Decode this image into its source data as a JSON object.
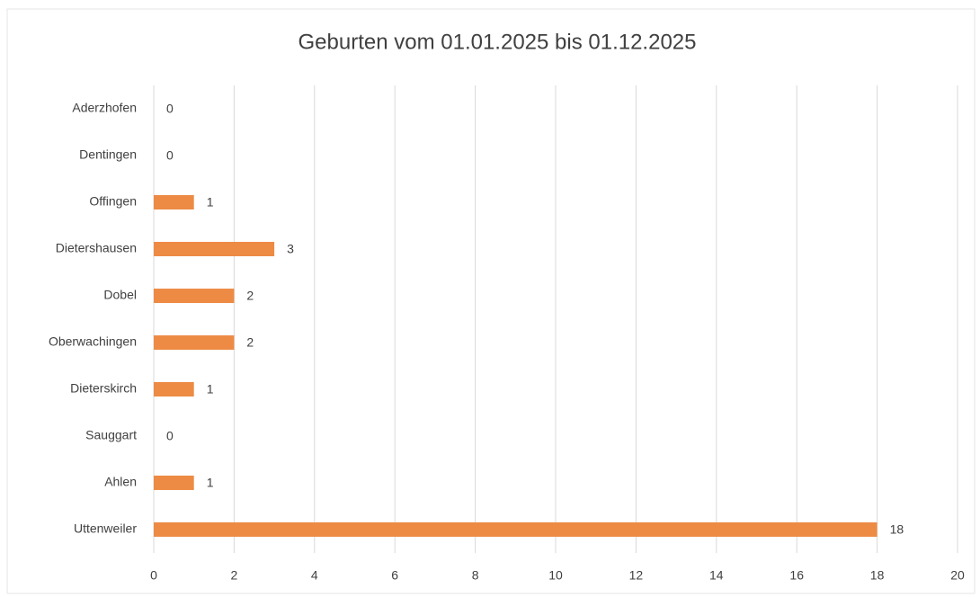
{
  "chart_data": {
    "type": "bar",
    "orientation": "horizontal",
    "title": "Geburten vom 01.01.2025 bis 01.12.2025",
    "categories": [
      "Aderzhofen",
      "Dentingen",
      "Offingen",
      "Dietershausen",
      "Dobel",
      "Oberwachingen",
      "Dieterskirch",
      "Sauggart",
      "Ahlen",
      "Uttenweiler"
    ],
    "values": [
      0,
      0,
      1,
      3,
      2,
      2,
      1,
      0,
      1,
      18
    ],
    "color": "#ed8b45",
    "xlim": [
      0,
      20
    ],
    "xticks": [
      0,
      2,
      4,
      6,
      8,
      10,
      12,
      14,
      16,
      18,
      20
    ],
    "grid": true
  }
}
